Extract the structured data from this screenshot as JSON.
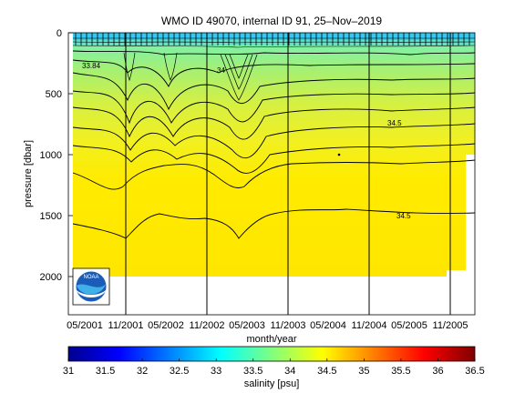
{
  "chart_data": {
    "type": "heatmap",
    "title": "WMO ID 49070, internal ID 91, 25–Nov–2019",
    "xlabel": "month/year",
    "ylabel": "pressure [dbar]",
    "x_ticks": [
      "05/2001",
      "11/2001",
      "05/2002",
      "11/2002",
      "05/2003",
      "11/2003",
      "05/2004",
      "11/2004",
      "05/2005",
      "11/2005"
    ],
    "y_ticks": [
      0,
      500,
      1000,
      1500,
      2000
    ],
    "ylim": [
      0,
      2300
    ],
    "grid": false,
    "colorbar": {
      "label": "salinity [psu]",
      "ticks": [
        31,
        31.5,
        32,
        32.5,
        33,
        33.5,
        34,
        34.5,
        35,
        35.5,
        36,
        36.5
      ],
      "range": [
        31,
        36.5
      ]
    },
    "contour_labels": [
      "33.84",
      "34",
      "34.5",
      "34.5"
    ],
    "logo": "NOAA"
  }
}
